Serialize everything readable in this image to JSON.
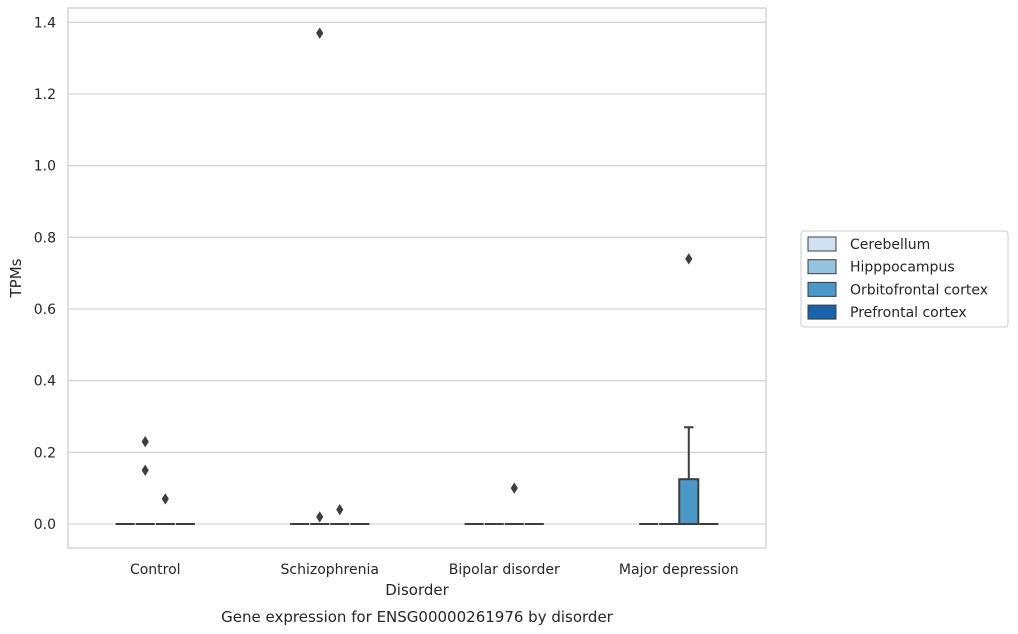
{
  "chart_data": {
    "type": "box",
    "title": "Gene expression for ENSG00000261976 by disorder",
    "xlabel": "Disorder",
    "ylabel": "TPMs",
    "categories": [
      "Control",
      "Schizophrenia",
      "Bipolar disorder",
      "Major depression"
    ],
    "ylim": [
      -0.067,
      1.44
    ],
    "yticks": [
      0.0,
      0.2,
      0.4,
      0.6,
      0.8,
      1.0,
      1.2,
      1.4
    ],
    "ytick_labels": [
      "0.0",
      "0.2",
      "0.4",
      "0.6",
      "0.8",
      "1.0",
      "1.2",
      "1.4"
    ],
    "grid": true,
    "legend_position": "right",
    "hue": [
      {
        "name": "Cerebellum",
        "color": "#d0e1f2"
      },
      {
        "name": "Hipppocampus",
        "color": "#94c4df"
      },
      {
        "name": "Orbitofrontal cortex",
        "color": "#4a98c9"
      },
      {
        "name": "Prefrontal cortex",
        "color": "#1764ab"
      }
    ],
    "boxes": [
      {
        "category": "Control",
        "hue": "Cerebellum",
        "q1": 0,
        "median": 0,
        "q3": 0,
        "whisker_low": 0,
        "whisker_high": 0,
        "outliers": []
      },
      {
        "category": "Control",
        "hue": "Hipppocampus",
        "q1": 0,
        "median": 0,
        "q3": 0,
        "whisker_low": 0,
        "whisker_high": 0,
        "outliers": [
          0.23,
          0.15
        ]
      },
      {
        "category": "Control",
        "hue": "Orbitofrontal cortex",
        "q1": 0,
        "median": 0,
        "q3": 0,
        "whisker_low": 0,
        "whisker_high": 0,
        "outliers": [
          0.07
        ]
      },
      {
        "category": "Control",
        "hue": "Prefrontal cortex",
        "q1": 0,
        "median": 0,
        "q3": 0,
        "whisker_low": 0,
        "whisker_high": 0,
        "outliers": []
      },
      {
        "category": "Schizophrenia",
        "hue": "Cerebellum",
        "q1": 0,
        "median": 0,
        "q3": 0,
        "whisker_low": 0,
        "whisker_high": 0,
        "outliers": []
      },
      {
        "category": "Schizophrenia",
        "hue": "Hipppocampus",
        "q1": 0,
        "median": 0,
        "q3": 0,
        "whisker_low": 0,
        "whisker_high": 0,
        "outliers": [
          1.37,
          0.02
        ]
      },
      {
        "category": "Schizophrenia",
        "hue": "Orbitofrontal cortex",
        "q1": 0,
        "median": 0,
        "q3": 0,
        "whisker_low": 0,
        "whisker_high": 0,
        "outliers": [
          0.04
        ]
      },
      {
        "category": "Schizophrenia",
        "hue": "Prefrontal cortex",
        "q1": 0,
        "median": 0,
        "q3": 0,
        "whisker_low": 0,
        "whisker_high": 0,
        "outliers": []
      },
      {
        "category": "Bipolar disorder",
        "hue": "Cerebellum",
        "q1": 0,
        "median": 0,
        "q3": 0,
        "whisker_low": 0,
        "whisker_high": 0,
        "outliers": []
      },
      {
        "category": "Bipolar disorder",
        "hue": "Hipppocampus",
        "q1": 0,
        "median": 0,
        "q3": 0,
        "whisker_low": 0,
        "whisker_high": 0,
        "outliers": []
      },
      {
        "category": "Bipolar disorder",
        "hue": "Orbitofrontal cortex",
        "q1": 0,
        "median": 0,
        "q3": 0,
        "whisker_low": 0,
        "whisker_high": 0,
        "outliers": [
          0.1
        ]
      },
      {
        "category": "Bipolar disorder",
        "hue": "Prefrontal cortex",
        "q1": 0,
        "median": 0,
        "q3": 0,
        "whisker_low": 0,
        "whisker_high": 0,
        "outliers": []
      },
      {
        "category": "Major depression",
        "hue": "Cerebellum",
        "q1": 0,
        "median": 0,
        "q3": 0,
        "whisker_low": 0,
        "whisker_high": 0,
        "outliers": []
      },
      {
        "category": "Major depression",
        "hue": "Hipppocampus",
        "q1": 0,
        "median": 0,
        "q3": 0,
        "whisker_low": 0,
        "whisker_high": 0,
        "outliers": []
      },
      {
        "category": "Major depression",
        "hue": "Orbitofrontal cortex",
        "q1": 0,
        "median": 0,
        "q3": 0.125,
        "whisker_low": 0,
        "whisker_high": 0.27,
        "outliers": [
          0.74
        ]
      },
      {
        "category": "Major depression",
        "hue": "Prefrontal cortex",
        "q1": 0,
        "median": 0,
        "q3": 0,
        "whisker_low": 0,
        "whisker_high": 0,
        "outliers": []
      }
    ]
  }
}
